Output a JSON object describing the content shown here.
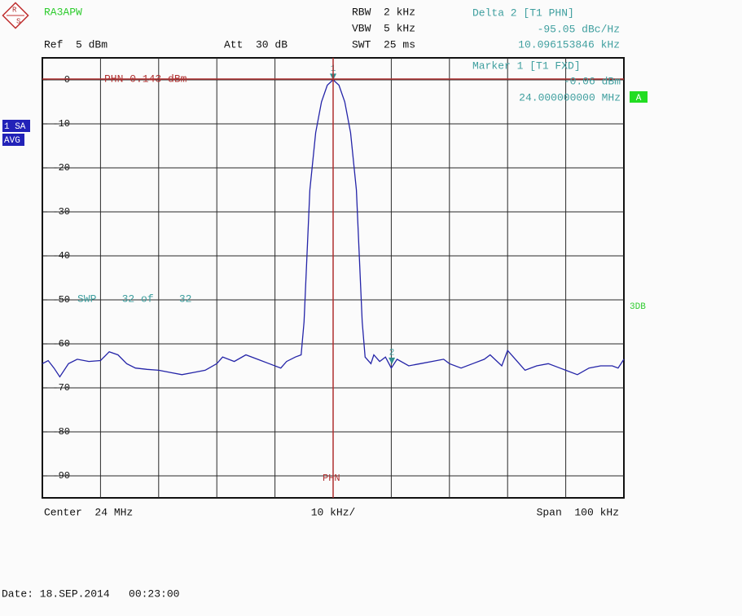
{
  "chart_data": {
    "type": "line",
    "instrument": "RA3APW",
    "logo_letters": [
      "R",
      "S"
    ],
    "header": {
      "ref": "Ref  5 dBm",
      "att": "Att  30 dB",
      "rbw": "RBW  2 kHz",
      "vbw": "VBW  5 kHz",
      "swt": "SWT  25 ms"
    },
    "delta_readout": {
      "title": "Delta 2 [T1 PHN]",
      "level": "-95.05 dBc/Hz",
      "offset": "10.096153846 kHz"
    },
    "marker_readout": {
      "title": "Marker 1 [T1 FXD]",
      "level": "-0.06 dBm",
      "frequency": "24.000000000 MHz"
    },
    "side_labels": {
      "trace": "1 SA",
      "detector": "AVG",
      "screen": "A",
      "filter": "3DB"
    },
    "annotations": {
      "phn_line": "PHN 0.143 dBm",
      "sweep": "SWP    32 of    32",
      "phn_marker": "PHN"
    },
    "footer": {
      "center": "Center  24 MHz",
      "div": "10 kHz/",
      "span": "Span  100 kHz",
      "date": "Date: 18.SEP.2014   00:23:00"
    },
    "color": "#2424a8",
    "xlim": [
      23.95,
      24.05
    ],
    "ylim": [
      -95,
      5
    ],
    "yticks": [
      0,
      -10,
      -20,
      -30,
      -40,
      -50,
      -60,
      -70,
      -80,
      -90
    ],
    "grid": true,
    "x": [
      23.95,
      23.951,
      23.952,
      23.953,
      23.9545,
      23.956,
      23.958,
      23.96,
      23.9615,
      23.963,
      23.9645,
      23.966,
      23.968,
      23.97,
      23.972,
      23.974,
      23.976,
      23.978,
      23.98,
      23.981,
      23.983,
      23.985,
      23.987,
      23.989,
      23.991,
      23.992,
      23.9935,
      23.9945,
      23.995,
      23.9955,
      23.996,
      23.997,
      23.998,
      23.999,
      24,
      24.001,
      24.002,
      24.003,
      24.004,
      24.0045,
      24.005,
      24.0055,
      24.0065,
      24.007,
      24.008,
      24.009,
      24.01,
      24.011,
      24.013,
      24.015,
      24.017,
      24.019,
      24.02,
      24.022,
      24.024,
      24.026,
      24.027,
      24.029,
      24.03,
      24.031,
      24.033,
      24.035,
      24.037,
      24.039,
      24.04,
      24.042,
      24.044,
      24.046,
      24.048,
      24.049,
      24.05
    ],
    "values": [
      -64.5,
      -63.8,
      -65.5,
      -67.5,
      -64.5,
      -63.5,
      -64,
      -63.8,
      -61.8,
      -62.5,
      -64.5,
      -65.5,
      -65.8,
      -66,
      -66.5,
      -67,
      -66.5,
      -66,
      -64.5,
      -63,
      -64,
      -62.5,
      -63.5,
      -64.5,
      -65.5,
      -64,
      -63,
      -62.5,
      -55,
      -40,
      -25,
      -12,
      -5,
      -1.2,
      0,
      -1.2,
      -5,
      -12,
      -25,
      -40,
      -55,
      -63,
      -64.5,
      -62.5,
      -64,
      -63,
      -65.5,
      -63.5,
      -65,
      -64.5,
      -64,
      -63.5,
      -64.5,
      -65.5,
      -64.5,
      -63.5,
      -62.5,
      -65,
      -61.5,
      -63,
      -66,
      -65,
      -64.5,
      -65.5,
      -66,
      -67,
      -65.5,
      -65,
      -65,
      -65.5,
      -63.5
    ],
    "markers": [
      {
        "label": "1",
        "x": 24,
        "y": -0.06
      },
      {
        "label": "2",
        "x": 24.010096153846,
        "y": -64.6
      }
    ]
  }
}
